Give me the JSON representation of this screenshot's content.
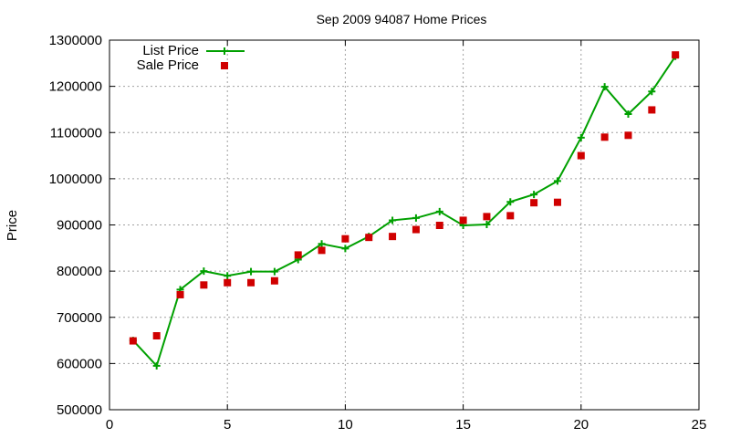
{
  "chart_data": {
    "type": "line",
    "title": "Sep 2009 94087 Home Prices",
    "xlabel": "",
    "ylabel": "Price",
    "xlim": [
      0,
      25
    ],
    "ylim": [
      500000,
      1300000
    ],
    "xticks": [
      0,
      5,
      10,
      15,
      20,
      25
    ],
    "yticks": [
      500000,
      600000,
      700000,
      800000,
      900000,
      1000000,
      1100000,
      1200000,
      1300000
    ],
    "grid": true,
    "legend_position": "top-left",
    "x": [
      1,
      2,
      3,
      4,
      5,
      6,
      7,
      8,
      9,
      10,
      11,
      12,
      13,
      14,
      15,
      16,
      17,
      18,
      19,
      20,
      21,
      22,
      23,
      24
    ],
    "series": [
      {
        "name": "List Price",
        "style": "linespoints",
        "color": "#00a000",
        "values": [
          650000,
          595000,
          760000,
          800000,
          790000,
          799000,
          799000,
          825000,
          859000,
          849000,
          875000,
          910000,
          915000,
          929000,
          899000,
          901000,
          950000,
          966000,
          995000,
          1089000,
          1199000,
          1140000,
          1189000,
          1265000
        ]
      },
      {
        "name": "Sale Price",
        "style": "points",
        "color": "#d00000",
        "values": [
          649000,
          660000,
          749000,
          770000,
          775000,
          775000,
          779000,
          835000,
          845000,
          870000,
          873000,
          875000,
          890000,
          899000,
          910000,
          918000,
          920000,
          948000,
          949000,
          1050000,
          1090000,
          1094000,
          1149000,
          1268000
        ]
      }
    ]
  }
}
